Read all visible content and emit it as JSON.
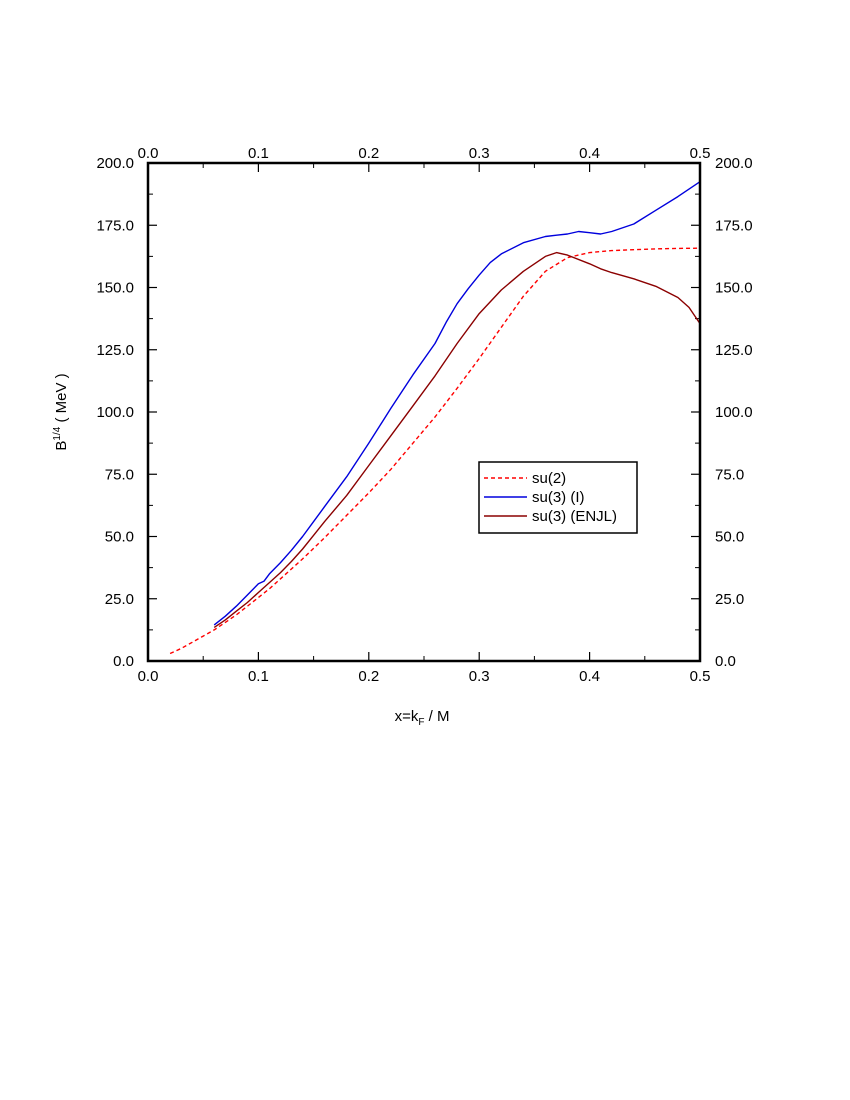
{
  "chart_data": {
    "type": "line",
    "xlabel": "x=k",
    "xlabel_sub": "F",
    "xlabel_suffix": " / M",
    "ylabel": "B",
    "ylabel_sup": "1/4",
    "ylabel_suffix": " ( MeV )",
    "xlim": [
      0.0,
      0.5
    ],
    "ylim": [
      0.0,
      200.0
    ],
    "x_ticks_bottom": [
      "0.0",
      "0.1",
      "0.2",
      "0.3",
      "0.4",
      "0.5"
    ],
    "x_ticks_top": [
      "0.0",
      "0.1",
      "0.2",
      "0.3",
      "0.4",
      "0.5"
    ],
    "y_ticks_left": [
      "0.0",
      "25.0",
      "50.0",
      "75.0",
      "100.0",
      "125.0",
      "150.0",
      "175.0",
      "200.0"
    ],
    "y_ticks_right": [
      "0.0",
      "25.0",
      "50.0",
      "75.0",
      "100.0",
      "125.0",
      "150.0",
      "175.0",
      "200.0"
    ],
    "grid": false,
    "legend_position": "center-right",
    "series": [
      {
        "name": "su(2)",
        "color": "#ff0000",
        "dash": "dashed",
        "x": [
          0.02,
          0.03,
          0.04,
          0.05,
          0.06,
          0.07,
          0.08,
          0.09,
          0.1,
          0.11,
          0.12,
          0.14,
          0.16,
          0.18,
          0.2,
          0.22,
          0.24,
          0.26,
          0.28,
          0.3,
          0.32,
          0.34,
          0.36,
          0.38,
          0.4,
          0.42,
          0.44,
          0.46,
          0.48,
          0.5
        ],
        "y": [
          3.0,
          5.0,
          7.5,
          10.0,
          12.5,
          15.5,
          18.5,
          22.0,
          25.5,
          29.0,
          33.0,
          41.0,
          49.5,
          58.5,
          67.5,
          77.0,
          87.5,
          98.0,
          109.5,
          121.5,
          134.0,
          146.5,
          156.5,
          162.0,
          164.0,
          164.8,
          165.2,
          165.5,
          165.7,
          165.8
        ]
      },
      {
        "name": "su(3) (I)",
        "color": "#0000dd",
        "dash": "solid",
        "x": [
          0.06,
          0.07,
          0.08,
          0.09,
          0.1,
          0.105,
          0.11,
          0.12,
          0.13,
          0.14,
          0.15,
          0.16,
          0.18,
          0.2,
          0.22,
          0.24,
          0.26,
          0.27,
          0.28,
          0.29,
          0.3,
          0.31,
          0.32,
          0.34,
          0.36,
          0.37,
          0.38,
          0.39,
          0.4,
          0.41,
          0.42,
          0.44,
          0.46,
          0.48,
          0.5
        ],
        "y": [
          14.5,
          18.0,
          22.0,
          26.5,
          31.0,
          32.0,
          35.0,
          39.5,
          44.5,
          50.0,
          56.0,
          62.0,
          74.0,
          87.5,
          101.5,
          115.0,
          127.5,
          136.0,
          143.5,
          149.5,
          155.0,
          160.0,
          163.5,
          168.0,
          170.5,
          171.0,
          171.5,
          172.5,
          172.0,
          171.5,
          172.5,
          175.5,
          181.0,
          186.5,
          192.5
        ]
      },
      {
        "name": "su(3) (ENJL)",
        "color": "#8b0000",
        "dash": "solid",
        "x": [
          0.06,
          0.07,
          0.08,
          0.09,
          0.1,
          0.11,
          0.12,
          0.13,
          0.14,
          0.15,
          0.16,
          0.18,
          0.2,
          0.22,
          0.24,
          0.26,
          0.28,
          0.3,
          0.32,
          0.34,
          0.36,
          0.37,
          0.38,
          0.4,
          0.41,
          0.42,
          0.44,
          0.46,
          0.48,
          0.49,
          0.5
        ],
        "y": [
          13.5,
          16.5,
          20.0,
          23.5,
          27.5,
          31.5,
          35.5,
          40.0,
          45.0,
          50.5,
          56.0,
          66.5,
          78.5,
          90.5,
          102.5,
          114.5,
          127.5,
          139.5,
          149.0,
          156.5,
          162.5,
          164.0,
          163.0,
          159.5,
          157.5,
          156.0,
          153.5,
          150.5,
          146.0,
          142.0,
          135.5
        ]
      }
    ]
  }
}
